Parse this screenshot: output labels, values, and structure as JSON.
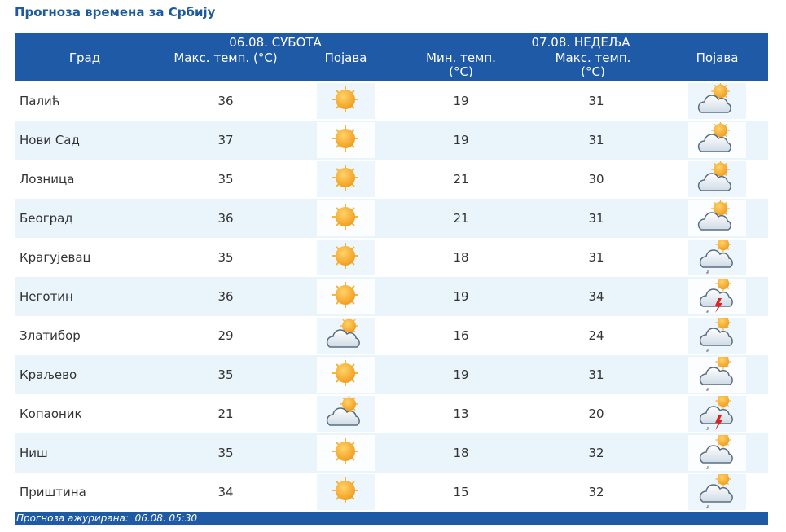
{
  "title": "Прогноза времена за Србију",
  "table": {
    "header": {
      "day1": "06.08. СУБОТА",
      "day2": "07.08. НЕДЕЉА",
      "columns": [
        "Град",
        "Макс. темп. (°C)",
        "Појава",
        "Мин. темп. (°C)",
        "Макс. темп. (°C)",
        "Појава"
      ]
    },
    "rows": [
      [
        "Палић",
        36,
        19,
        31
      ],
      [
        "Нови Сад",
        37,
        19,
        31
      ],
      [
        "Лозница",
        35,
        21,
        30
      ],
      [
        "Београд",
        36,
        21,
        31
      ],
      [
        "Крагујевац",
        35,
        18,
        31
      ],
      [
        "Неготин",
        36,
        19,
        34
      ],
      [
        "Златибор",
        29,
        16,
        24
      ],
      [
        "Краљево",
        35,
        19,
        31
      ],
      [
        "Копаоник",
        21,
        13,
        20
      ],
      [
        "Ниш",
        35,
        18,
        32
      ],
      [
        "Приштина",
        34,
        15,
        32
      ]
    ]
  },
  "footer": {
    "label": "Прогноза ажурирана:",
    "time": "06.08. 05:30"
  }
}
